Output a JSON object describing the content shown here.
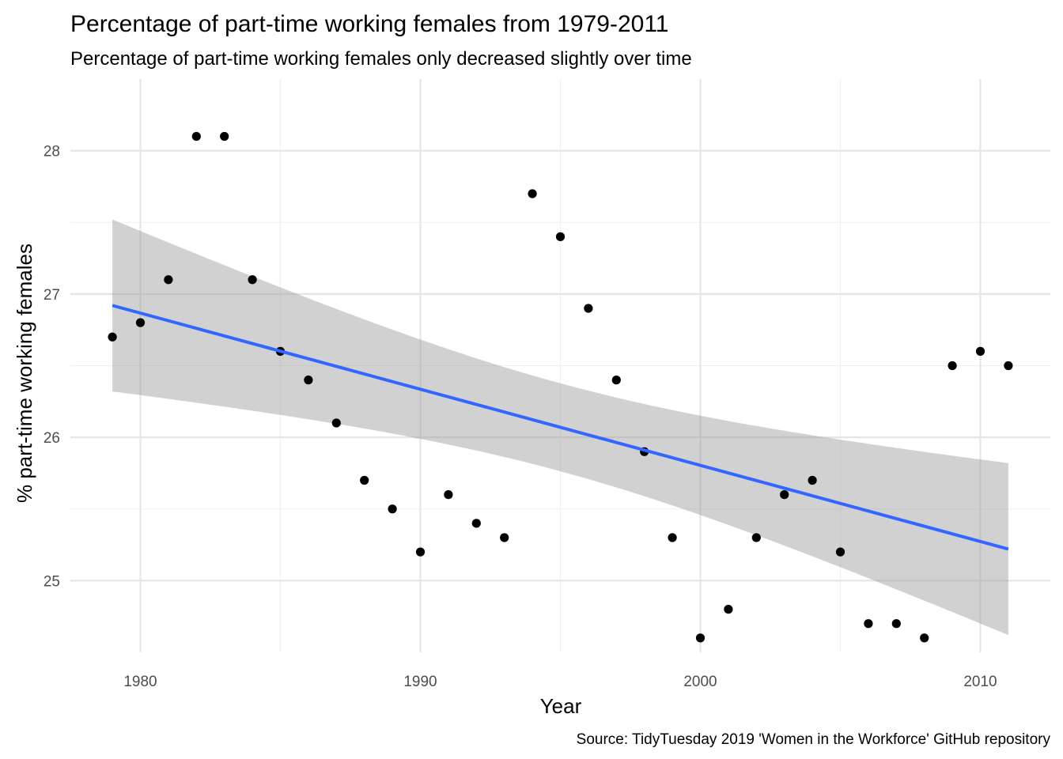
{
  "chart_data": {
    "type": "scatter",
    "title": "Percentage of part-time working females from 1979-2011",
    "subtitle": "Percentage of part-time working females only decreased slightly over time",
    "xlabel": "Year",
    "ylabel": "% part-time working females",
    "caption": "Source: TidyTuesday 2019 'Women in the Workforce' GitHub repository",
    "xlim": [
      1977.5,
      2012.5
    ],
    "ylim": [
      24.5,
      28.5
    ],
    "x_ticks": [
      1980,
      1990,
      2000,
      2010
    ],
    "y_ticks": [
      25,
      26,
      27,
      28
    ],
    "grid": true,
    "legend": "none",
    "series": [
      {
        "kind": "points",
        "color": "#000000",
        "x": [
          1979,
          1980,
          1981,
          1982,
          1983,
          1984,
          1985,
          1986,
          1987,
          1988,
          1989,
          1990,
          1991,
          1992,
          1993,
          1994,
          1995,
          1996,
          1997,
          1998,
          1999,
          2000,
          2001,
          2002,
          2003,
          2004,
          2005,
          2006,
          2007,
          2008,
          2009,
          2010,
          2011
        ],
        "y": [
          26.7,
          26.8,
          27.1,
          28.1,
          28.1,
          27.1,
          26.6,
          26.4,
          26.1,
          25.7,
          25.5,
          25.2,
          25.6,
          25.4,
          25.3,
          27.7,
          27.4,
          26.9,
          26.4,
          25.9,
          25.3,
          24.6,
          24.8,
          25.3,
          25.6,
          25.7,
          25.2,
          24.7,
          24.7,
          24.6,
          26.5,
          26.6,
          26.5
        ]
      },
      {
        "kind": "smooth",
        "method": "lm",
        "color": "#3366ff",
        "band_color": "#999999",
        "x": [
          1979,
          2011
        ],
        "y": [
          26.92,
          25.22
        ],
        "ci_lower": [
          26.32,
          24.62
        ],
        "ci_upper": [
          27.52,
          25.82
        ]
      }
    ]
  }
}
